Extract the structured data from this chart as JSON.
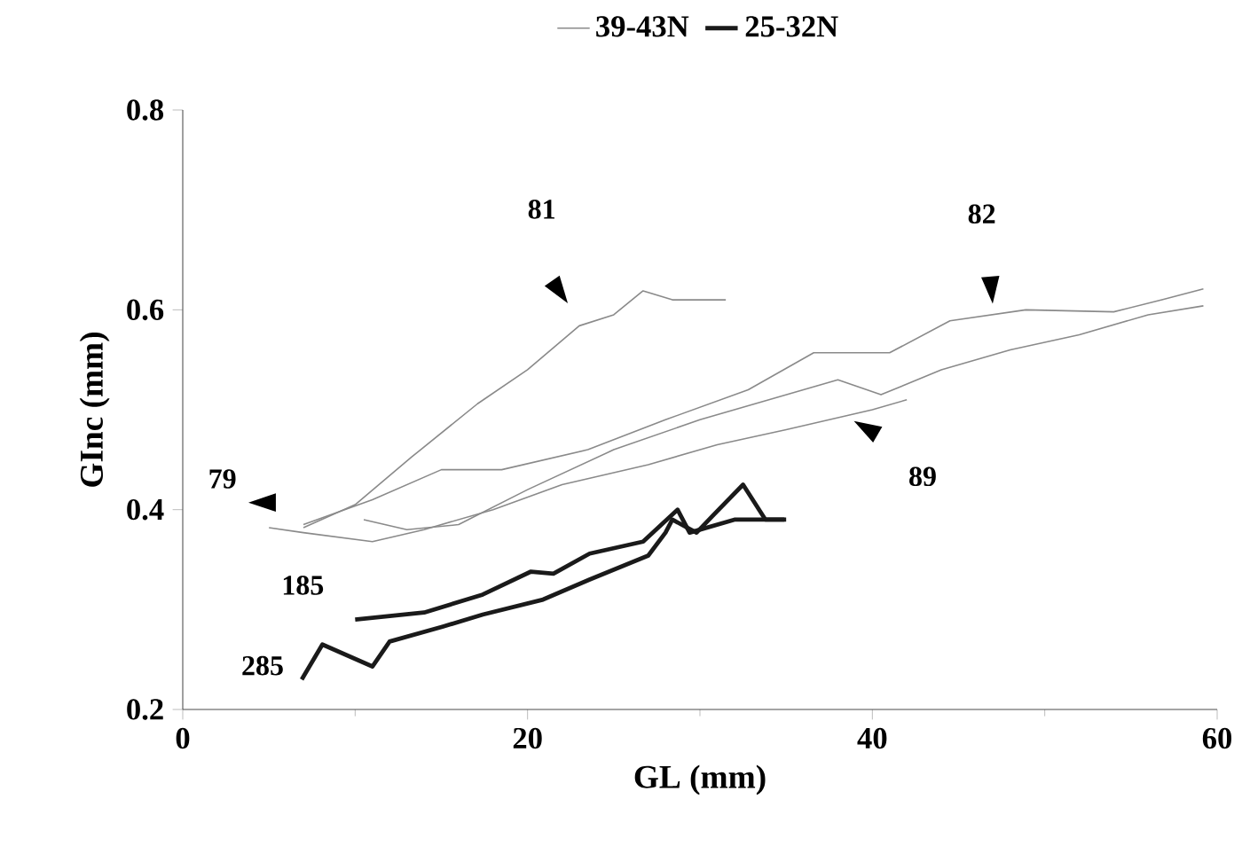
{
  "chart_data": {
    "type": "line",
    "xlabel": "GL (mm)",
    "ylabel": "GInc (mm)",
    "xlim": [
      0,
      60
    ],
    "ylim": [
      0.2,
      0.8
    ],
    "xticks": [
      0,
      20,
      40,
      60
    ],
    "yticks": [
      0.2,
      0.4,
      0.6,
      0.8
    ],
    "grid": false,
    "legend": "top",
    "marker": "none",
    "line_style": "solid",
    "series": [
      {
        "name": "39-43N",
        "color": "#8a8a8a",
        "x": [
          7,
          10,
          13.3,
          17.1,
          20,
          23,
          25,
          26.7,
          28.4,
          31.5
        ],
        "values": [
          0.382,
          0.405,
          0.453,
          0.506,
          0.54,
          0.584,
          0.595,
          0.619,
          0.61,
          0.61
        ]
      },
      {
        "color": "#8a8a8a",
        "x": [
          7,
          11,
          15,
          18.5,
          23.5,
          28,
          32.8,
          36.6,
          41,
          44.5,
          48.9,
          54,
          56.8,
          59.2
        ],
        "values": [
          0.385,
          0.41,
          0.44,
          0.44,
          0.46,
          0.49,
          0.52,
          0.557,
          0.557,
          0.589,
          0.6,
          0.598,
          0.61,
          0.621
        ]
      },
      {
        "color": "#8a8a8a",
        "x": [
          10.5,
          13,
          16,
          20,
          25,
          30,
          34,
          38,
          40.5,
          44,
          48,
          52,
          56,
          59.2
        ],
        "values": [
          0.39,
          0.38,
          0.385,
          0.42,
          0.46,
          0.49,
          0.51,
          0.53,
          0.515,
          0.54,
          0.56,
          0.575,
          0.595,
          0.604
        ]
      },
      {
        "color": "#8a8a8a",
        "x": [
          5,
          7,
          11,
          14,
          18,
          22,
          27,
          31,
          35,
          40,
          42
        ],
        "values": [
          0.382,
          0.377,
          0.368,
          0.38,
          0.4,
          0.425,
          0.445,
          0.465,
          0.48,
          0.5,
          0.51
        ]
      },
      {
        "name": "25-32N",
        "color": "#1a1a1a",
        "x": [
          10,
          14,
          17.4,
          20.2,
          21.5,
          23.6,
          26.7,
          28.7,
          29.4,
          32,
          35
        ],
        "values": [
          0.29,
          0.297,
          0.315,
          0.338,
          0.336,
          0.356,
          0.368,
          0.4,
          0.377,
          0.39,
          0.39
        ]
      },
      {
        "color": "#1a1a1a",
        "x": [
          6.9,
          8.1,
          11,
          12,
          15.1,
          17.4,
          20.9,
          23.6,
          27,
          28,
          28.4,
          29.8,
          30.8,
          32.5,
          33.8,
          34.9
        ],
        "values": [
          0.23,
          0.265,
          0.243,
          0.268,
          0.283,
          0.295,
          0.31,
          0.33,
          0.354,
          0.377,
          0.39,
          0.377,
          0.395,
          0.425,
          0.39,
          0.39
        ]
      }
    ],
    "annotations": [
      "79",
      "81",
      "82",
      "89",
      "185",
      "285"
    ]
  }
}
